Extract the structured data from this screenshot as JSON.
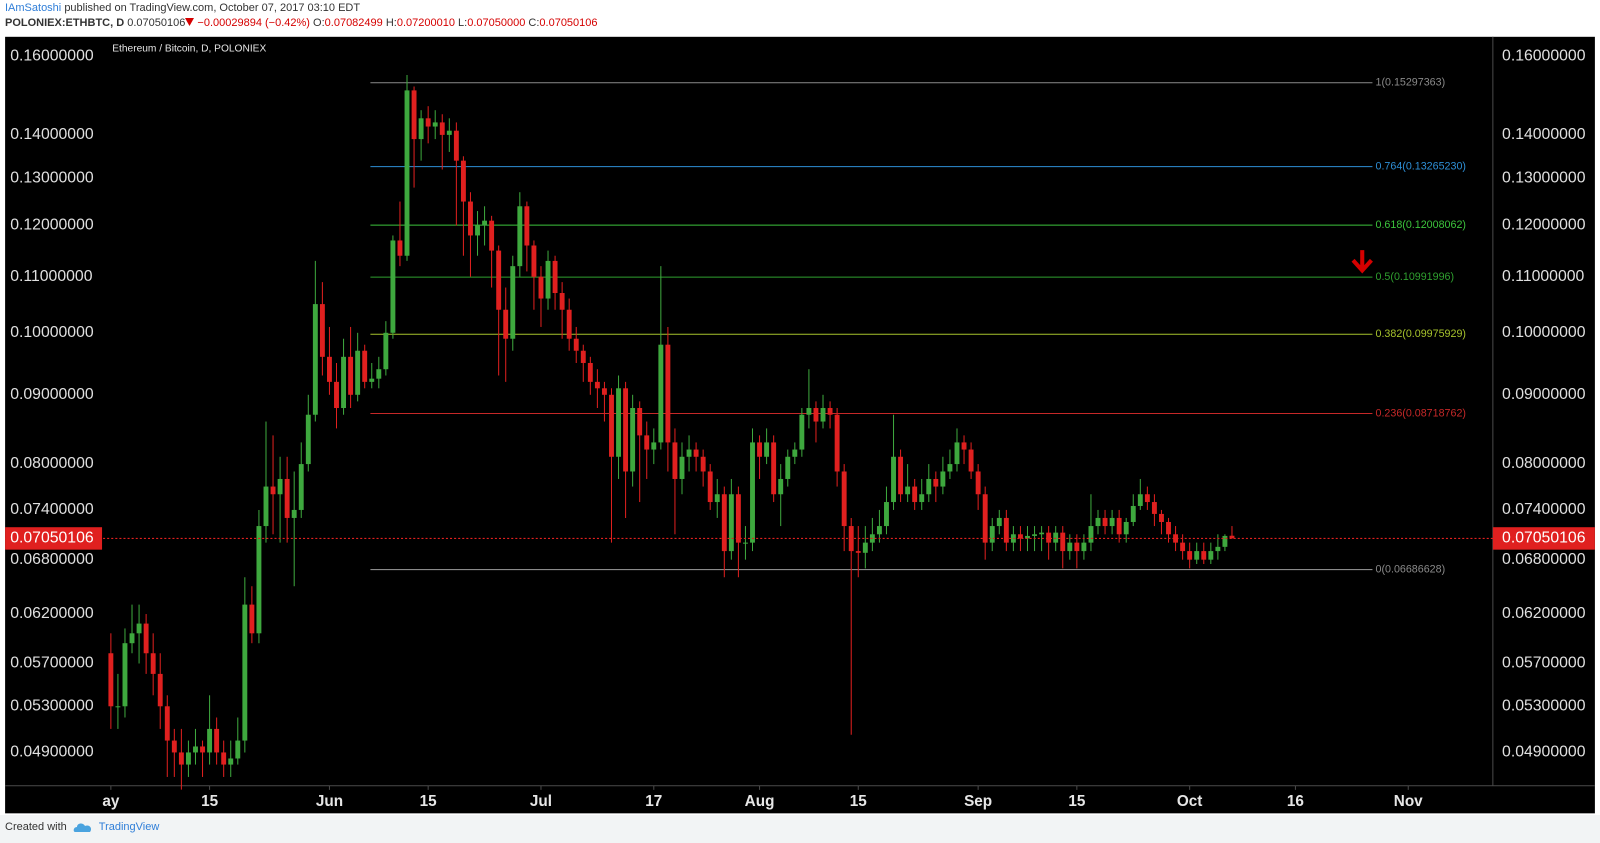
{
  "header": {
    "author": "IAmSatoshi",
    "published": "published on TradingView.com, October 07, 2017 03:10 EDT",
    "symbol": "POLONIEX:ETHBTC, D",
    "last": "0.07050106",
    "change": "−0.00029894 (−0.42%)",
    "ohlc": [
      {
        "key": "O:",
        "value": "0.07082499"
      },
      {
        "key": "H:",
        "value": "0.07200010"
      },
      {
        "key": "L:",
        "value": "0.07050000"
      },
      {
        "key": "C:",
        "value": "0.07050106"
      }
    ]
  },
  "chart_data": {
    "type": "candlestick",
    "title": "Ethereum / Bitcoin, D, POLONIEX",
    "log_scale": true,
    "grid": false,
    "up_color": "#3ea83e",
    "down_color": "#e0201f",
    "x": [
      "2017-05-01",
      "2017-05-02",
      "2017-05-03",
      "2017-05-04",
      "2017-05-05",
      "2017-05-06",
      "2017-05-07",
      "2017-05-08",
      "2017-05-09",
      "2017-05-10",
      "2017-05-11",
      "2017-05-12",
      "2017-05-13",
      "2017-05-14",
      "2017-05-15",
      "2017-05-16",
      "2017-05-17",
      "2017-05-18",
      "2017-05-19",
      "2017-05-20",
      "2017-05-21",
      "2017-05-22",
      "2017-05-23",
      "2017-05-24",
      "2017-05-25",
      "2017-05-26",
      "2017-05-27",
      "2017-05-28",
      "2017-05-29",
      "2017-05-30",
      "2017-05-31",
      "2017-06-01",
      "2017-06-02",
      "2017-06-03",
      "2017-06-04",
      "2017-06-05",
      "2017-06-06",
      "2017-06-07",
      "2017-06-08",
      "2017-06-09",
      "2017-06-10",
      "2017-06-11",
      "2017-06-12",
      "2017-06-13",
      "2017-06-14",
      "2017-06-15",
      "2017-06-16",
      "2017-06-17",
      "2017-06-18",
      "2017-06-19",
      "2017-06-20",
      "2017-06-21",
      "2017-06-22",
      "2017-06-23",
      "2017-06-24",
      "2017-06-25",
      "2017-06-26",
      "2017-06-27",
      "2017-06-28",
      "2017-06-29",
      "2017-06-30",
      "2017-07-01",
      "2017-07-02",
      "2017-07-03",
      "2017-07-04",
      "2017-07-05",
      "2017-07-06",
      "2017-07-07",
      "2017-07-08",
      "2017-07-09",
      "2017-07-10",
      "2017-07-11",
      "2017-07-12",
      "2017-07-13",
      "2017-07-14",
      "2017-07-15",
      "2017-07-16",
      "2017-07-17",
      "2017-07-18",
      "2017-07-19",
      "2017-07-20",
      "2017-07-21",
      "2017-07-22",
      "2017-07-23",
      "2017-07-24",
      "2017-07-25",
      "2017-07-26",
      "2017-07-27",
      "2017-07-28",
      "2017-07-29",
      "2017-07-30",
      "2017-07-31",
      "2017-08-01",
      "2017-08-02",
      "2017-08-03",
      "2017-08-04",
      "2017-08-05",
      "2017-08-06",
      "2017-08-07",
      "2017-08-08",
      "2017-08-09",
      "2017-08-10",
      "2017-08-11",
      "2017-08-12",
      "2017-08-13",
      "2017-08-14",
      "2017-08-15",
      "2017-08-16",
      "2017-08-17",
      "2017-08-18",
      "2017-08-19",
      "2017-08-20",
      "2017-08-21",
      "2017-08-22",
      "2017-08-23",
      "2017-08-24",
      "2017-08-25",
      "2017-08-26",
      "2017-08-27",
      "2017-08-28",
      "2017-08-29",
      "2017-08-30",
      "2017-08-31",
      "2017-09-01",
      "2017-09-02",
      "2017-09-03",
      "2017-09-04",
      "2017-09-05",
      "2017-09-06",
      "2017-09-07",
      "2017-09-08",
      "2017-09-09",
      "2017-09-10",
      "2017-09-11",
      "2017-09-12",
      "2017-09-13",
      "2017-09-14",
      "2017-09-15",
      "2017-09-16",
      "2017-09-17",
      "2017-09-18",
      "2017-09-19",
      "2017-09-20",
      "2017-09-21",
      "2017-09-22",
      "2017-09-23",
      "2017-09-24",
      "2017-09-25",
      "2017-09-26",
      "2017-09-27",
      "2017-09-28",
      "2017-09-29",
      "2017-09-30",
      "2017-10-01",
      "2017-10-02",
      "2017-10-03",
      "2017-10-04",
      "2017-10-05",
      "2017-10-06",
      "2017-10-07"
    ],
    "open": [
      0.058,
      0.053,
      0.053,
      0.059,
      0.06,
      0.061,
      0.058,
      0.056,
      0.053,
      0.05,
      0.049,
      0.048,
      0.049,
      0.0495,
      0.049,
      0.051,
      0.049,
      0.048,
      0.0485,
      0.05,
      0.063,
      0.06,
      0.072,
      0.077,
      0.076,
      0.078,
      0.073,
      0.074,
      0.08,
      0.087,
      0.105,
      0.096,
      0.092,
      0.088,
      0.096,
      0.09,
      0.097,
      0.092,
      0.0925,
      0.094,
      0.1,
      0.117,
      0.114,
      0.151,
      0.139,
      0.144,
      0.142,
      0.143,
      0.14,
      0.141,
      0.134,
      0.125,
      0.118,
      0.12,
      0.121,
      0.115,
      0.104,
      0.099,
      0.112,
      0.124,
      0.116,
      0.11,
      0.106,
      0.113,
      0.107,
      0.104,
      0.099,
      0.097,
      0.095,
      0.092,
      0.091,
      0.09,
      0.081,
      0.091,
      0.079,
      0.088,
      0.084,
      0.082,
      0.083,
      0.098,
      0.083,
      0.078,
      0.081,
      0.082,
      0.081,
      0.079,
      0.075,
      0.076,
      0.069,
      0.076,
      0.07,
      0.07,
      0.083,
      0.081,
      0.083,
      0.076,
      0.078,
      0.081,
      0.082,
      0.087,
      0.088,
      0.086,
      0.088,
      0.087,
      0.079,
      0.072,
      0.069,
      0.0688,
      0.07,
      0.071,
      0.072,
      0.075,
      0.081,
      0.076,
      0.077,
      0.075,
      0.076,
      0.078,
      0.077,
      0.079,
      0.08,
      0.083,
      0.082,
      0.079,
      0.076,
      0.07,
      0.072,
      0.073,
      0.07,
      0.071,
      0.0705,
      0.0708,
      0.071,
      0.0712,
      0.07,
      0.0712,
      0.069,
      0.07,
      0.069,
      0.07,
      0.072,
      0.073,
      0.072,
      0.073,
      0.071,
      0.0725,
      0.0745,
      0.076,
      0.075,
      0.0735,
      0.0725,
      0.071,
      0.07,
      0.069,
      0.068,
      0.069,
      0.068,
      0.069,
      0.0695,
      0.07082499
    ],
    "high": [
      0.06,
      0.056,
      0.0605,
      0.063,
      0.063,
      0.062,
      0.06,
      0.058,
      0.054,
      0.051,
      0.051,
      0.05,
      0.051,
      0.05,
      0.054,
      0.052,
      0.05,
      0.05,
      0.052,
      0.066,
      0.065,
      0.074,
      0.086,
      0.084,
      0.081,
      0.081,
      0.079,
      0.083,
      0.09,
      0.113,
      0.109,
      0.101,
      0.095,
      0.099,
      0.101,
      0.1,
      0.098,
      0.095,
      0.096,
      0.102,
      0.118,
      0.125,
      0.155,
      0.152,
      0.146,
      0.147,
      0.146,
      0.145,
      0.144,
      0.143,
      0.135,
      0.127,
      0.123,
      0.124,
      0.122,
      0.116,
      0.108,
      0.114,
      0.127,
      0.125,
      0.117,
      0.112,
      0.115,
      0.114,
      0.109,
      0.106,
      0.101,
      0.098,
      0.096,
      0.094,
      0.092,
      0.091,
      0.093,
      0.092,
      0.09,
      0.089,
      0.086,
      0.085,
      0.112,
      0.101,
      0.085,
      0.083,
      0.084,
      0.083,
      0.082,
      0.08,
      0.078,
      0.077,
      0.078,
      0.077,
      0.072,
      0.085,
      0.084,
      0.085,
      0.084,
      0.08,
      0.082,
      0.083,
      0.088,
      0.094,
      0.089,
      0.09,
      0.089,
      0.088,
      0.08,
      0.073,
      0.072,
      0.072,
      0.073,
      0.074,
      0.077,
      0.087,
      0.082,
      0.08,
      0.078,
      0.078,
      0.08,
      0.079,
      0.081,
      0.082,
      0.085,
      0.084,
      0.083,
      0.08,
      0.077,
      0.073,
      0.074,
      0.074,
      0.072,
      0.072,
      0.072,
      0.072,
      0.072,
      0.072,
      0.072,
      0.072,
      0.071,
      0.071,
      0.071,
      0.076,
      0.074,
      0.074,
      0.074,
      0.074,
      0.073,
      0.076,
      0.078,
      0.077,
      0.076,
      0.074,
      0.073,
      0.072,
      0.071,
      0.07,
      0.07,
      0.07,
      0.07,
      0.071,
      0.071,
      0.0720001
    ],
    "low": [
      0.051,
      0.051,
      0.052,
      0.058,
      0.057,
      0.056,
      0.054,
      0.051,
      0.047,
      0.047,
      0.046,
      0.047,
      0.048,
      0.047,
      0.048,
      0.048,
      0.047,
      0.047,
      0.048,
      0.049,
      0.059,
      0.059,
      0.07,
      0.071,
      0.07,
      0.07,
      0.065,
      0.073,
      0.079,
      0.086,
      0.093,
      0.09,
      0.085,
      0.087,
      0.088,
      0.089,
      0.091,
      0.091,
      0.091,
      0.093,
      0.099,
      0.112,
      0.113,
      0.128,
      0.134,
      0.138,
      0.139,
      0.132,
      0.136,
      0.12,
      0.114,
      0.11,
      0.114,
      0.116,
      0.108,
      0.093,
      0.092,
      0.097,
      0.11,
      0.111,
      0.104,
      0.101,
      0.104,
      0.104,
      0.099,
      0.097,
      0.095,
      0.092,
      0.09,
      0.088,
      0.086,
      0.07,
      0.078,
      0.073,
      0.077,
      0.075,
      0.078,
      0.08,
      0.082,
      0.079,
      0.071,
      0.076,
      0.079,
      0.079,
      0.077,
      0.074,
      0.073,
      0.066,
      0.068,
      0.066,
      0.068,
      0.069,
      0.078,
      0.08,
      0.075,
      0.072,
      0.077,
      0.08,
      0.081,
      0.085,
      0.083,
      0.085,
      0.085,
      0.077,
      0.069,
      0.0505,
      0.066,
      0.067,
      0.069,
      0.07,
      0.071,
      0.074,
      0.075,
      0.075,
      0.074,
      0.074,
      0.075,
      0.075,
      0.076,
      0.078,
      0.079,
      0.08,
      0.078,
      0.074,
      0.068,
      0.069,
      0.071,
      0.069,
      0.069,
      0.069,
      0.069,
      0.069,
      0.069,
      0.068,
      0.069,
      0.067,
      0.068,
      0.067,
      0.068,
      0.069,
      0.071,
      0.071,
      0.071,
      0.07,
      0.07,
      0.072,
      0.074,
      0.074,
      0.072,
      0.071,
      0.07,
      0.069,
      0.068,
      0.067,
      0.0675,
      0.0675,
      0.0675,
      0.068,
      0.069,
      0.0705
    ],
    "close": [
      0.053,
      0.053,
      0.059,
      0.06,
      0.061,
      0.058,
      0.056,
      0.053,
      0.05,
      0.049,
      0.048,
      0.049,
      0.0495,
      0.049,
      0.051,
      0.049,
      0.048,
      0.0485,
      0.05,
      0.063,
      0.06,
      0.072,
      0.077,
      0.076,
      0.078,
      0.073,
      0.074,
      0.08,
      0.087,
      0.105,
      0.096,
      0.092,
      0.088,
      0.096,
      0.09,
      0.097,
      0.092,
      0.0925,
      0.094,
      0.1,
      0.117,
      0.114,
      0.151,
      0.139,
      0.144,
      0.142,
      0.143,
      0.14,
      0.141,
      0.134,
      0.125,
      0.118,
      0.12,
      0.121,
      0.115,
      0.104,
      0.099,
      0.112,
      0.124,
      0.116,
      0.11,
      0.106,
      0.113,
      0.107,
      0.104,
      0.099,
      0.097,
      0.095,
      0.092,
      0.091,
      0.09,
      0.081,
      0.091,
      0.079,
      0.088,
      0.084,
      0.082,
      0.083,
      0.098,
      0.083,
      0.078,
      0.081,
      0.082,
      0.081,
      0.079,
      0.075,
      0.076,
      0.069,
      0.076,
      0.07,
      0.07,
      0.083,
      0.081,
      0.083,
      0.076,
      0.078,
      0.081,
      0.082,
      0.087,
      0.088,
      0.086,
      0.088,
      0.087,
      0.079,
      0.072,
      0.069,
      0.0688,
      0.07,
      0.071,
      0.072,
      0.075,
      0.081,
      0.076,
      0.077,
      0.075,
      0.076,
      0.078,
      0.077,
      0.079,
      0.08,
      0.083,
      0.082,
      0.079,
      0.076,
      0.07,
      0.072,
      0.073,
      0.07,
      0.071,
      0.0705,
      0.0708,
      0.071,
      0.0712,
      0.07,
      0.0712,
      0.069,
      0.07,
      0.069,
      0.07,
      0.072,
      0.073,
      0.072,
      0.073,
      0.071,
      0.0725,
      0.0745,
      0.076,
      0.075,
      0.0735,
      0.0725,
      0.071,
      0.07,
      0.069,
      0.068,
      0.069,
      0.068,
      0.069,
      0.0695,
      0.0708,
      0.07050106
    ],
    "ylim": [
      0.0463,
      0.1654
    ],
    "yticks": [
      {
        "value": 0.16,
        "label": "0.16000000"
      },
      {
        "value": 0.14,
        "label": "0.14000000"
      },
      {
        "value": 0.13,
        "label": "0.13000000"
      },
      {
        "value": 0.12,
        "label": "0.12000000"
      },
      {
        "value": 0.11,
        "label": "0.11000000"
      },
      {
        "value": 0.1,
        "label": "0.10000000"
      },
      {
        "value": 0.09,
        "label": "0.09000000"
      },
      {
        "value": 0.08,
        "label": "0.08000000"
      },
      {
        "value": 0.074,
        "label": "0.07400000"
      },
      {
        "value": 0.068,
        "label": "0.06800000"
      },
      {
        "value": 0.062,
        "label": "0.06200000"
      },
      {
        "value": 0.057,
        "label": "0.05700000"
      },
      {
        "value": 0.053,
        "label": "0.05300000"
      },
      {
        "value": 0.049,
        "label": "0.04900000"
      }
    ],
    "xlim": [
      "2017-04-16",
      "2017-11-13"
    ],
    "xticks": [
      {
        "value": "2017-05-01",
        "label": "ay"
      },
      {
        "value": "2017-05-15",
        "label": "15"
      },
      {
        "value": "2017-06-01",
        "label": "Jun"
      },
      {
        "value": "2017-06-15",
        "label": "15"
      },
      {
        "value": "2017-07-01",
        "label": "Jul"
      },
      {
        "value": "2017-07-17",
        "label": "17"
      },
      {
        "value": "2017-08-01",
        "label": "Aug"
      },
      {
        "value": "2017-08-15",
        "label": "15"
      },
      {
        "value": "2017-09-01",
        "label": "Sep"
      },
      {
        "value": "2017-09-15",
        "label": "15"
      },
      {
        "value": "2017-10-01",
        "label": "Oct"
      },
      {
        "value": "2017-10-16",
        "label": "16"
      },
      {
        "value": "2017-11-01",
        "label": "Nov"
      }
    ],
    "last_price": 0.07050106,
    "last_price_color": "#e0201f",
    "fib_levels": [
      {
        "value": 0.15297363,
        "label": "1(0.15297363)",
        "color": "#8a8a8a"
      },
      {
        "value": 0.1326523,
        "label": "0.764(0.13265230)",
        "color": "#2e8fd6"
      },
      {
        "value": 0.12008062,
        "label": "0.618(0.12008062)",
        "color": "#3cc43c"
      },
      {
        "value": 0.10991996,
        "label": "0.5(0.10991996)",
        "color": "#2fa02f"
      },
      {
        "value": 0.09975929,
        "label": "0.382(0.09975929)",
        "color": "#a6c22c"
      },
      {
        "value": 0.08718762,
        "label": "0.236(0.08718762)",
        "color": "#c62828"
      },
      {
        "value": 0.06686628,
        "label": "0(0.06686628)",
        "color": "#8a8a8a"
      }
    ]
  },
  "footer": {
    "created": "Created with",
    "brand": "TradingView"
  }
}
